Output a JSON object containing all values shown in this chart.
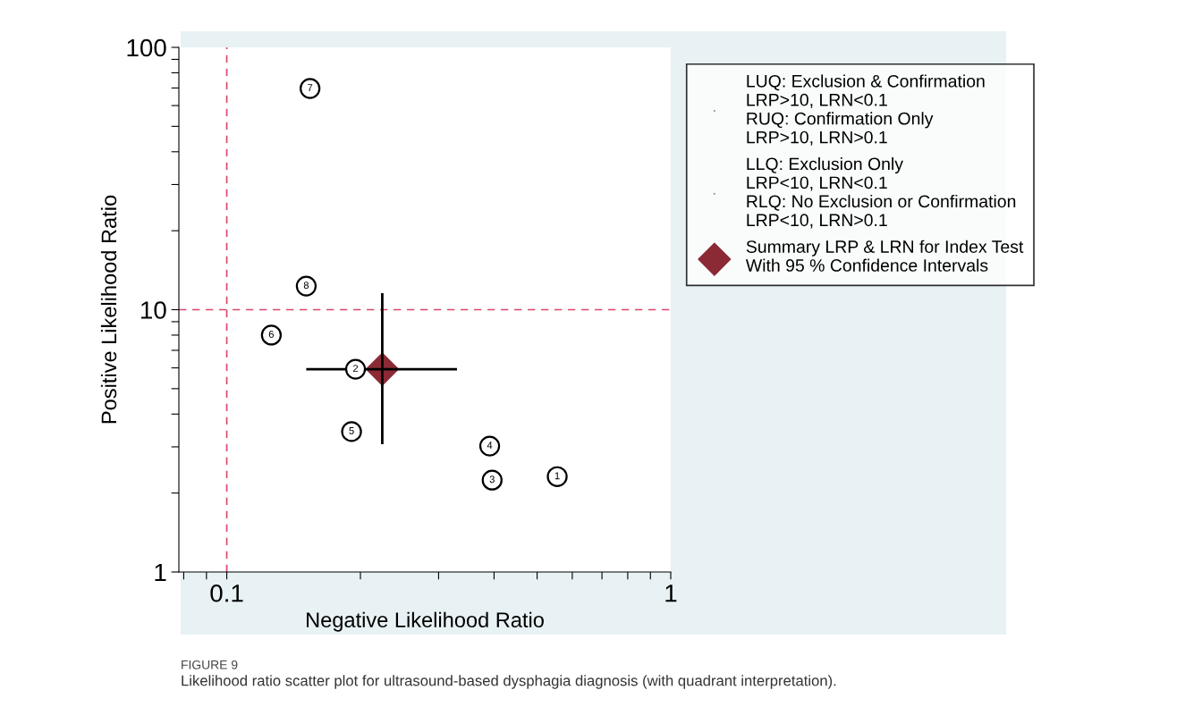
{
  "chart_data": {
    "type": "scatter",
    "title": "FIGURE 9",
    "subtitle": "Likelihood ratio scatter plot for ultrasound-based dysphagia diagnosis (with quadrant interpretation).",
    "xlabel": "Negative Likelihood Ratio",
    "ylabel": "Positive Likelihood Ratio",
    "log": "xy",
    "grid": false,
    "legend": "top right",
    "xlim": [
      0.078,
      1
    ],
    "ylim": [
      1,
      100
    ],
    "xticks": [
      {
        "value": 0.08,
        "label": null
      },
      {
        "value": 0.09,
        "label": null
      },
      0.1,
      {
        "value": 0.2,
        "label": null
      },
      {
        "value": 0.3,
        "label": null
      },
      {
        "value": 0.4,
        "label": null
      },
      {
        "value": 0.5,
        "label": null
      },
      {
        "value": 0.6,
        "label": null
      },
      {
        "value": 0.7,
        "label": null
      },
      {
        "value": 0.8,
        "label": null
      },
      {
        "value": 0.9,
        "label": null
      },
      1
    ],
    "yticks": [
      1,
      {
        "value": 2,
        "label": null
      },
      {
        "value": 3,
        "label": null
      },
      {
        "value": 4,
        "label": null
      },
      {
        "value": 5,
        "label": null
      },
      {
        "value": 6,
        "label": null
      },
      {
        "value": 7,
        "label": null
      },
      {
        "value": 8,
        "label": null
      },
      {
        "value": 9,
        "label": null
      },
      10,
      {
        "value": 20,
        "label": null
      },
      {
        "value": 30,
        "label": null
      },
      {
        "value": 40,
        "label": null
      },
      {
        "value": 50,
        "label": null
      },
      {
        "value": 60,
        "label": null
      },
      {
        "value": 70,
        "label": null
      },
      {
        "value": 80,
        "label": null
      },
      {
        "value": 90,
        "label": null
      },
      100
    ],
    "series": [
      {
        "marker": "circle",
        "color": "#000000",
        "x": [
          0.555,
          0.195,
          0.396,
          0.391,
          0.191,
          0.126,
          0.154,
          0.151
        ],
        "values": [
          2.31,
          5.93,
          2.24,
          3.02,
          3.43,
          8.0,
          69.7,
          12.3
        ]
      },
      {
        "marker": "diamond",
        "color": "#8b2a35",
        "name": "Summary LRP & LRN for Index Test\nWith 95 % Confidence Intervals",
        "x": [
          0.224
        ],
        "values": [
          5.93
        ],
        "errors": [
          [
            3.07,
            11.56
          ]
        ],
        "xerrors": [
          [
            0.151,
            0.33
          ]
        ]
      }
    ],
    "ref_lines": [
      {
        "axis": "x",
        "value": 0.1,
        "color": "#d9476b",
        "line_style": "dashed"
      },
      {
        "axis": "y",
        "value": 10,
        "color": "#d9476b",
        "line_style": "dashed"
      }
    ],
    "annotations": [
      {
        "text": "1",
        "x": 0.555,
        "y": 2.31
      },
      {
        "text": "2",
        "x": 0.195,
        "y": 5.93
      },
      {
        "text": "3",
        "x": 0.396,
        "y": 2.24
      },
      {
        "text": "4",
        "x": 0.391,
        "y": 3.02
      },
      {
        "text": "5",
        "x": 0.191,
        "y": 3.43
      },
      {
        "text": "6",
        "x": 0.126,
        "y": 8.0
      },
      {
        "text": "7",
        "x": 0.154,
        "y": 69.7
      },
      {
        "text": "8",
        "x": 0.151,
        "y": 12.3
      },
      "LUQ: Exclusion & Confirmation\nLRP>10, LRN<0.1\nRUQ: Confirmation Only\nLRP>10, LRN>0.1",
      "LLQ: Exclusion Only\nLRP<10, LRN<0.1\nRLQ: No Exclusion or Confirmation\nLRP<10, LRN>0.1"
    ]
  }
}
